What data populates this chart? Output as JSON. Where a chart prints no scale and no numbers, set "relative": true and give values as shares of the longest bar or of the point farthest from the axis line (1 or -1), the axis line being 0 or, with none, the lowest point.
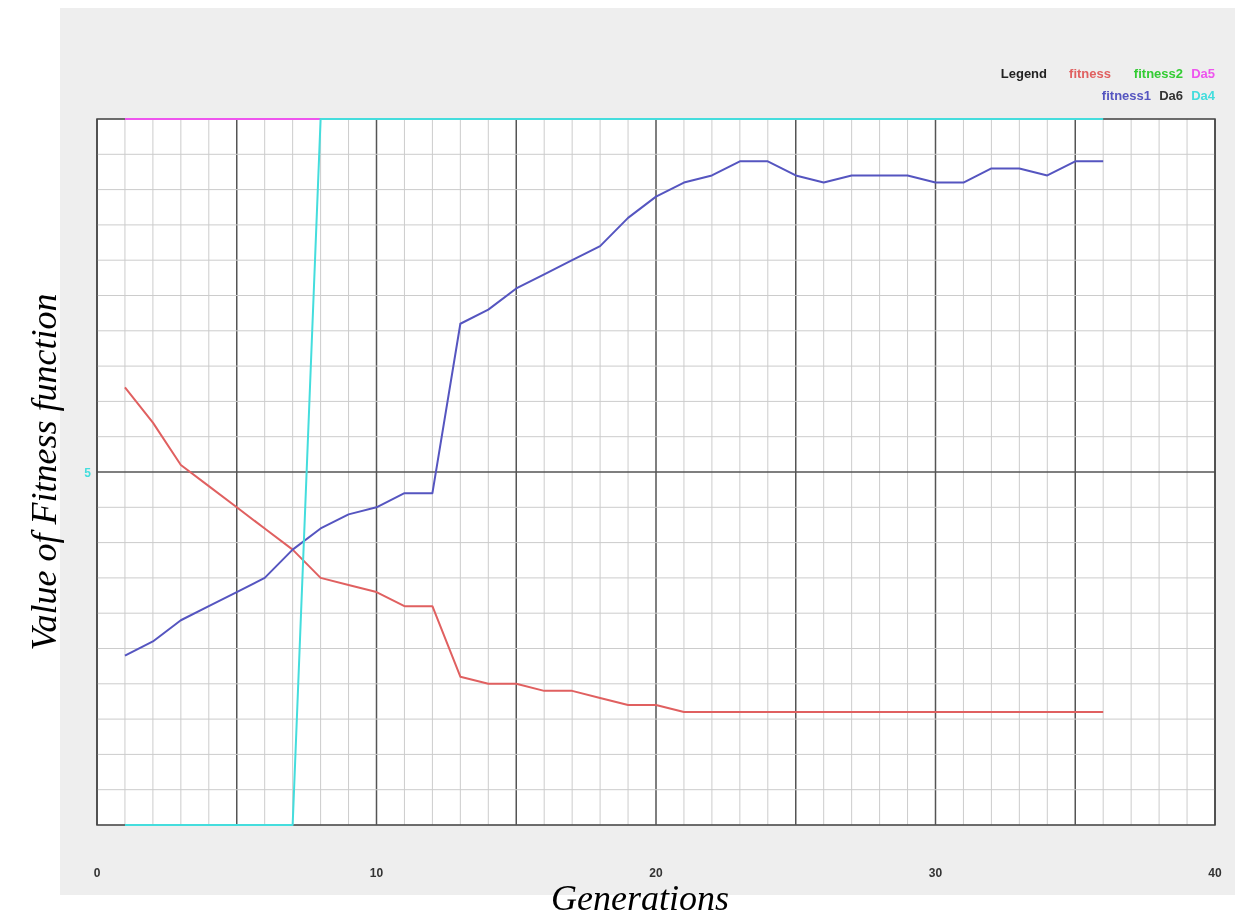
{
  "chart_data": {
    "type": "line",
    "xlabel": "Generations",
    "ylabel": "Value of Fitness function",
    "legend_title": "Legend",
    "legend": "top right",
    "grid": true,
    "relative": true,
    "annotations": [
      "5"
    ],
    "xlim": [
      0,
      40
    ],
    "xticks": [
      0,
      10,
      20,
      30,
      40
    ],
    "x": [
      1,
      2,
      3,
      4,
      5,
      6,
      7,
      8,
      9,
      10,
      11,
      12,
      13,
      14,
      15,
      16,
      17,
      18,
      19,
      20,
      21,
      22,
      23,
      24,
      25,
      26,
      27,
      28,
      29,
      30,
      31,
      32,
      33,
      34,
      35,
      36
    ],
    "series": [
      {
        "name": "fitness",
        "color": "#e06060",
        "values": [
          0.62,
          0.57,
          0.51,
          0.48,
          0.45,
          0.42,
          0.39,
          0.35,
          0.34,
          0.33,
          0.31,
          0.31,
          0.21,
          0.2,
          0.2,
          0.19,
          0.19,
          0.18,
          0.17,
          0.17,
          0.16,
          0.16,
          0.16,
          0.16,
          0.16,
          0.16,
          0.16,
          0.16,
          0.16,
          0.16,
          0.16,
          0.16,
          0.16,
          0.16,
          0.16,
          0.16
        ]
      },
      {
        "name": "fitness2",
        "color": "#33cc33",
        "values": [
          null,
          null,
          null,
          null,
          null,
          null,
          null,
          null,
          null,
          null,
          null,
          null,
          null,
          null,
          null,
          null,
          null,
          null,
          null,
          null,
          null,
          null,
          null,
          null,
          null,
          null,
          null,
          null,
          null,
          null,
          null,
          null,
          null,
          null,
          null,
          null
        ]
      },
      {
        "name": "Da5",
        "color": "#ee55ee",
        "values": [
          1,
          1,
          1,
          1,
          1,
          1,
          1,
          1,
          null,
          null,
          null,
          null,
          null,
          null,
          null,
          null,
          null,
          null,
          null,
          null,
          null,
          null,
          null,
          null,
          null,
          null,
          null,
          null,
          null,
          null,
          null,
          null,
          null,
          null,
          null,
          null
        ]
      },
      {
        "name": "fitness1",
        "color": "#5555c0",
        "values": [
          0.24,
          0.26,
          0.29,
          0.31,
          0.33,
          0.35,
          0.39,
          0.42,
          0.44,
          0.45,
          0.47,
          0.47,
          0.71,
          0.73,
          0.76,
          0.78,
          0.8,
          0.82,
          0.86,
          0.89,
          0.91,
          0.92,
          0.94,
          0.94,
          0.92,
          0.91,
          0.92,
          0.92,
          0.92,
          0.91,
          0.91,
          0.93,
          0.93,
          0.92,
          0.94,
          0.94
        ]
      },
      {
        "name": "Da6",
        "color": "#333333",
        "values": [
          null,
          null,
          null,
          null,
          null,
          null,
          null,
          null,
          null,
          null,
          null,
          null,
          null,
          null,
          null,
          null,
          null,
          null,
          null,
          null,
          null,
          null,
          null,
          null,
          null,
          null,
          null,
          null,
          null,
          null,
          null,
          null,
          null,
          null,
          null,
          null
        ]
      },
      {
        "name": "Da4",
        "color": "#44dddd",
        "values": [
          0,
          0,
          0,
          0,
          0,
          0,
          0,
          1,
          1,
          1,
          1,
          1,
          1,
          1,
          1,
          1,
          1,
          1,
          1,
          1,
          1,
          1,
          1,
          1,
          1,
          1,
          1,
          1,
          1,
          1,
          1,
          1,
          1,
          1,
          1,
          1
        ]
      }
    ]
  }
}
